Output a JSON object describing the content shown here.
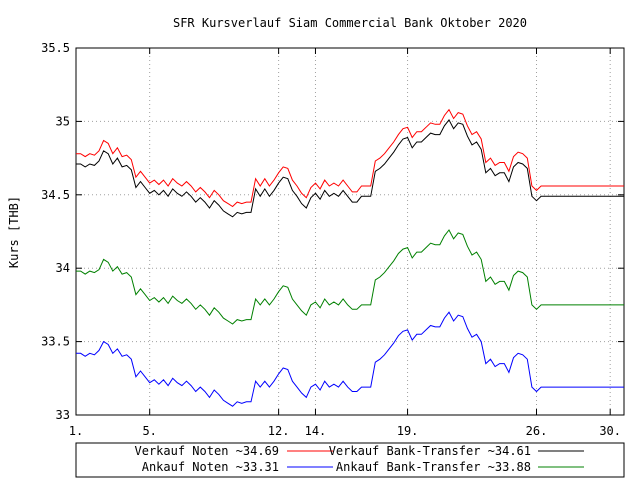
{
  "chart_data": {
    "type": "line",
    "title": "SFR Kursverlauf Siam Commercial Bank Oktober 2020",
    "xlabel": "",
    "ylabel": "Kurs [THB]",
    "xlim": [
      1,
      30.75
    ],
    "ylim": [
      33,
      35.5
    ],
    "grid": true,
    "legend_position": "bottom",
    "x_ticks": [
      {
        "value": 1,
        "label": "1."
      },
      {
        "value": 5,
        "label": "5."
      },
      {
        "value": 12,
        "label": "12."
      },
      {
        "value": 14,
        "label": "14."
      },
      {
        "value": 19,
        "label": "19."
      },
      {
        "value": 26,
        "label": "26."
      },
      {
        "value": 30,
        "label": "30."
      }
    ],
    "y_ticks": [
      {
        "value": 33,
        "label": "33"
      },
      {
        "value": 33.5,
        "label": "33.5"
      },
      {
        "value": 34,
        "label": "34"
      },
      {
        "value": 34.5,
        "label": "34.5"
      },
      {
        "value": 35,
        "label": "35"
      },
      {
        "value": 35.5,
        "label": "35.5"
      }
    ],
    "x": [
      1,
      1.25,
      1.5,
      1.75,
      2,
      2.25,
      2.5,
      2.75,
      3,
      3.25,
      3.5,
      3.75,
      4,
      4.25,
      4.5,
      4.75,
      5,
      5.25,
      5.5,
      5.75,
      6,
      6.25,
      6.5,
      6.75,
      7,
      7.25,
      7.5,
      7.75,
      8,
      8.25,
      8.5,
      8.75,
      9,
      9.25,
      9.5,
      9.75,
      10,
      10.25,
      10.5,
      10.75,
      11,
      11.25,
      11.5,
      11.75,
      12,
      12.25,
      12.5,
      12.75,
      13,
      13.25,
      13.5,
      13.75,
      14,
      14.25,
      14.5,
      14.75,
      15,
      15.25,
      15.5,
      15.75,
      16,
      16.25,
      16.5,
      16.75,
      17,
      17.25,
      17.5,
      17.75,
      18,
      18.25,
      18.5,
      18.75,
      19,
      19.25,
      19.5,
      19.75,
      20,
      20.25,
      20.5,
      20.75,
      21,
      21.25,
      21.5,
      21.75,
      22,
      22.25,
      22.5,
      22.75,
      23,
      23.25,
      23.5,
      23.75,
      24,
      24.25,
      24.5,
      24.75,
      25,
      25.25,
      25.5,
      25.75,
      26,
      26.25,
      26.5,
      26.75,
      27,
      27.25,
      27.5,
      27.75,
      28,
      28.25,
      28.5,
      28.75,
      29,
      29.25,
      29.5,
      29.75,
      30,
      30.25,
      30.5,
      30.75
    ],
    "series": [
      {
        "name": "Verkauf Noten ~34.69",
        "color": "#ff0000",
        "values": [
          34.78,
          34.78,
          34.76,
          34.78,
          34.77,
          34.8,
          34.87,
          34.85,
          34.78,
          34.82,
          34.76,
          34.77,
          34.74,
          34.62,
          34.66,
          34.62,
          34.58,
          34.6,
          34.57,
          34.6,
          34.56,
          34.61,
          34.58,
          34.56,
          34.59,
          34.56,
          34.52,
          34.55,
          34.52,
          34.48,
          34.53,
          34.5,
          34.46,
          34.44,
          34.42,
          34.45,
          34.44,
          34.45,
          34.45,
          34.61,
          34.56,
          34.61,
          34.56,
          34.6,
          34.65,
          34.69,
          34.68,
          34.6,
          34.56,
          34.51,
          34.48,
          34.55,
          34.58,
          34.54,
          34.6,
          34.56,
          34.58,
          34.56,
          34.6,
          34.56,
          34.52,
          34.52,
          34.56,
          34.56,
          34.56,
          34.73,
          34.75,
          34.78,
          34.82,
          34.86,
          34.91,
          34.95,
          34.96,
          34.89,
          34.93,
          34.93,
          34.96,
          34.99,
          34.98,
          34.98,
          35.04,
          35.08,
          35.02,
          35.06,
          35.05,
          34.97,
          34.91,
          34.93,
          34.88,
          34.72,
          34.75,
          34.7,
          34.72,
          34.72,
          34.66,
          34.76,
          34.79,
          34.78,
          34.75,
          34.56,
          34.53,
          34.56,
          34.56,
          34.56,
          34.56,
          34.56,
          34.56,
          34.56,
          34.56,
          34.56,
          34.56,
          34.56,
          34.56,
          34.56,
          34.56,
          34.56,
          34.56,
          34.56,
          34.56,
          34.56
        ]
      },
      {
        "name": "Verkauf Bank-Transfer ~34.61",
        "color": "#000000",
        "values": [
          34.71,
          34.71,
          34.69,
          34.71,
          34.7,
          34.73,
          34.8,
          34.78,
          34.71,
          34.75,
          34.69,
          34.7,
          34.67,
          34.55,
          34.59,
          34.55,
          34.51,
          34.53,
          34.5,
          34.53,
          34.49,
          34.54,
          34.51,
          34.49,
          34.52,
          34.49,
          34.45,
          34.48,
          34.45,
          34.41,
          34.46,
          34.43,
          34.39,
          34.37,
          34.35,
          34.38,
          34.37,
          34.38,
          34.38,
          34.54,
          34.49,
          34.54,
          34.49,
          34.53,
          34.58,
          34.62,
          34.61,
          34.53,
          34.49,
          34.44,
          34.41,
          34.48,
          34.51,
          34.47,
          34.53,
          34.49,
          34.51,
          34.49,
          34.53,
          34.49,
          34.45,
          34.45,
          34.49,
          34.49,
          34.49,
          34.66,
          34.68,
          34.71,
          34.75,
          34.79,
          34.84,
          34.88,
          34.89,
          34.82,
          34.86,
          34.86,
          34.89,
          34.92,
          34.91,
          34.91,
          34.97,
          35.01,
          34.95,
          34.99,
          34.98,
          34.9,
          34.84,
          34.86,
          34.81,
          34.65,
          34.68,
          34.63,
          34.65,
          34.65,
          34.59,
          34.69,
          34.72,
          34.71,
          34.68,
          34.49,
          34.46,
          34.49,
          34.49,
          34.49,
          34.49,
          34.49,
          34.49,
          34.49,
          34.49,
          34.49,
          34.49,
          34.49,
          34.49,
          34.49,
          34.49,
          34.49,
          34.49,
          34.49,
          34.49,
          34.49
        ]
      },
      {
        "name": "Ankauf Noten ~33.31",
        "color": "#0000ff",
        "values": [
          33.42,
          33.42,
          33.4,
          33.42,
          33.41,
          33.44,
          33.5,
          33.48,
          33.42,
          33.45,
          33.4,
          33.41,
          33.38,
          33.26,
          33.3,
          33.26,
          33.22,
          33.24,
          33.21,
          33.24,
          33.2,
          33.25,
          33.22,
          33.2,
          33.23,
          33.2,
          33.16,
          33.19,
          33.16,
          33.12,
          33.17,
          33.14,
          33.1,
          33.08,
          33.06,
          33.09,
          33.08,
          33.09,
          33.09,
          33.23,
          33.19,
          33.23,
          33.19,
          33.23,
          33.28,
          33.32,
          33.31,
          33.23,
          33.19,
          33.15,
          33.12,
          33.19,
          33.21,
          33.17,
          33.23,
          33.19,
          33.21,
          33.19,
          33.23,
          33.19,
          33.16,
          33.16,
          33.19,
          33.19,
          33.19,
          33.36,
          33.38,
          33.41,
          33.45,
          33.49,
          33.54,
          33.57,
          33.58,
          33.51,
          33.55,
          33.55,
          33.58,
          33.61,
          33.6,
          33.6,
          33.66,
          33.7,
          33.64,
          33.68,
          33.67,
          33.59,
          33.53,
          33.55,
          33.5,
          33.35,
          33.38,
          33.33,
          33.35,
          33.35,
          33.29,
          33.39,
          33.42,
          33.41,
          33.38,
          33.19,
          33.16,
          33.19,
          33.19,
          33.19,
          33.19,
          33.19,
          33.19,
          33.19,
          33.19,
          33.19,
          33.19,
          33.19,
          33.19,
          33.19,
          33.19,
          33.19,
          33.19,
          33.19,
          33.19,
          33.19
        ]
      },
      {
        "name": "Ankauf Bank-Transfer ~33.88",
        "color": "#008000",
        "values": [
          33.98,
          33.98,
          33.96,
          33.98,
          33.97,
          33.99,
          34.06,
          34.04,
          33.98,
          34.01,
          33.96,
          33.97,
          33.94,
          33.82,
          33.86,
          33.82,
          33.78,
          33.8,
          33.77,
          33.8,
          33.76,
          33.81,
          33.78,
          33.76,
          33.79,
          33.76,
          33.72,
          33.75,
          33.72,
          33.68,
          33.73,
          33.7,
          33.66,
          33.64,
          33.62,
          33.65,
          33.64,
          33.65,
          33.65,
          33.79,
          33.75,
          33.79,
          33.75,
          33.79,
          33.84,
          33.88,
          33.87,
          33.79,
          33.75,
          33.71,
          33.68,
          33.75,
          33.77,
          33.73,
          33.79,
          33.75,
          33.77,
          33.75,
          33.79,
          33.75,
          33.72,
          33.72,
          33.75,
          33.75,
          33.75,
          33.92,
          33.94,
          33.97,
          34.01,
          34.05,
          34.1,
          34.13,
          34.14,
          34.07,
          34.11,
          34.11,
          34.14,
          34.17,
          34.16,
          34.16,
          34.22,
          34.26,
          34.2,
          34.24,
          34.23,
          34.15,
          34.09,
          34.11,
          34.06,
          33.91,
          33.94,
          33.89,
          33.91,
          33.91,
          33.85,
          33.95,
          33.98,
          33.97,
          33.94,
          33.75,
          33.72,
          33.75,
          33.75,
          33.75,
          33.75,
          33.75,
          33.75,
          33.75,
          33.75,
          33.75,
          33.75,
          33.75,
          33.75,
          33.75,
          33.75,
          33.75,
          33.75,
          33.75,
          33.75,
          33.75
        ]
      }
    ]
  }
}
